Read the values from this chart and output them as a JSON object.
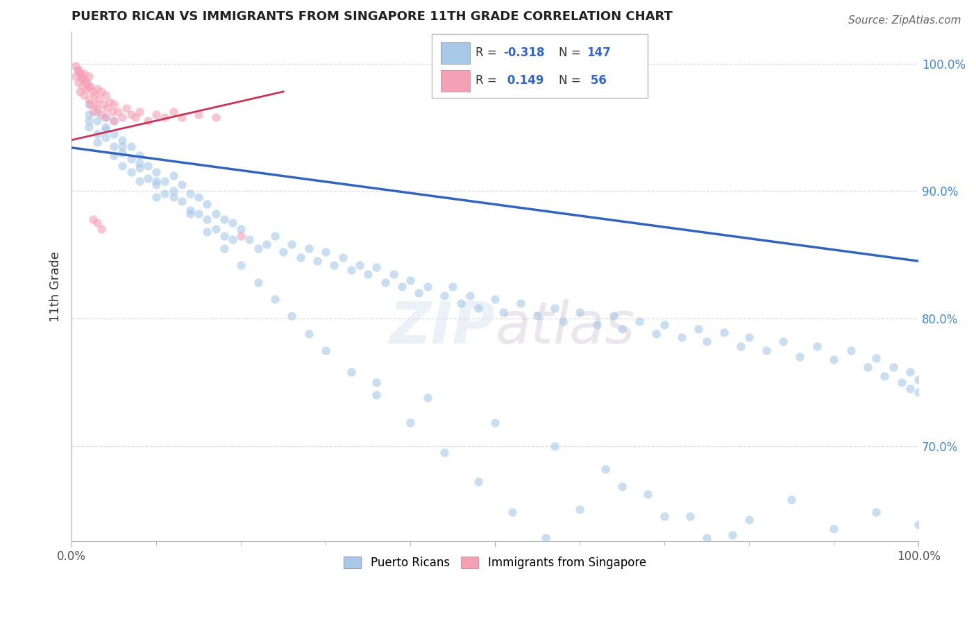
{
  "title": "PUERTO RICAN VS IMMIGRANTS FROM SINGAPORE 11TH GRADE CORRELATION CHART",
  "source": "Source: ZipAtlas.com",
  "ylabel": "11th Grade",
  "right_yticks": [
    1.0,
    0.9,
    0.8,
    0.7
  ],
  "right_yticklabels": [
    "100.0%",
    "90.0%",
    "80.0%",
    "70.0%"
  ],
  "legend_blue_r": "-0.318",
  "legend_blue_n": "147",
  "legend_pink_r": "0.149",
  "legend_pink_n": "56",
  "blue_color": "#a8c8e8",
  "pink_color": "#f4a0b5",
  "trend_blue_color": "#3366bb",
  "trend_pink_color": "#cc3355",
  "watermark": "ZIPatlas",
  "title_fontsize": 13,
  "source_fontsize": 11,
  "scatter_alpha": 0.6,
  "scatter_size": 80,
  "ylim_low": 0.625,
  "ylim_high": 1.025,
  "blue_scatter_x": [
    0.02,
    0.02,
    0.02,
    0.02,
    0.03,
    0.03,
    0.03,
    0.03,
    0.04,
    0.04,
    0.04,
    0.05,
    0.05,
    0.05,
    0.05,
    0.06,
    0.06,
    0.06,
    0.07,
    0.07,
    0.07,
    0.08,
    0.08,
    0.08,
    0.09,
    0.09,
    0.1,
    0.1,
    0.1,
    0.11,
    0.11,
    0.12,
    0.12,
    0.13,
    0.13,
    0.14,
    0.14,
    0.15,
    0.15,
    0.16,
    0.16,
    0.17,
    0.17,
    0.18,
    0.18,
    0.19,
    0.19,
    0.2,
    0.21,
    0.22,
    0.23,
    0.24,
    0.25,
    0.26,
    0.27,
    0.28,
    0.29,
    0.3,
    0.31,
    0.32,
    0.33,
    0.34,
    0.35,
    0.36,
    0.37,
    0.38,
    0.39,
    0.4,
    0.41,
    0.42,
    0.44,
    0.45,
    0.46,
    0.47,
    0.48,
    0.5,
    0.51,
    0.53,
    0.55,
    0.57,
    0.58,
    0.6,
    0.62,
    0.64,
    0.65,
    0.67,
    0.69,
    0.7,
    0.72,
    0.74,
    0.75,
    0.77,
    0.79,
    0.8,
    0.82,
    0.84,
    0.86,
    0.88,
    0.9,
    0.92,
    0.94,
    0.95,
    0.96,
    0.97,
    0.98,
    0.99,
    0.99,
    1.0,
    1.0,
    0.04,
    0.06,
    0.08,
    0.1,
    0.12,
    0.14,
    0.16,
    0.18,
    0.2,
    0.22,
    0.24,
    0.26,
    0.28,
    0.3,
    0.33,
    0.36,
    0.4,
    0.44,
    0.48,
    0.52,
    0.56,
    0.6,
    0.65,
    0.7,
    0.75,
    0.8,
    0.85,
    0.9,
    0.95,
    1.0,
    0.36,
    0.42,
    0.5,
    0.57,
    0.63,
    0.68,
    0.73,
    0.78
  ],
  "blue_scatter_y": [
    0.96,
    0.968,
    0.955,
    0.95,
    0.962,
    0.955,
    0.945,
    0.938,
    0.958,
    0.95,
    0.942,
    0.955,
    0.945,
    0.935,
    0.928,
    0.94,
    0.93,
    0.92,
    0.935,
    0.925,
    0.915,
    0.928,
    0.918,
    0.908,
    0.92,
    0.91,
    0.915,
    0.905,
    0.895,
    0.908,
    0.898,
    0.912,
    0.9,
    0.905,
    0.892,
    0.898,
    0.885,
    0.895,
    0.882,
    0.89,
    0.878,
    0.882,
    0.87,
    0.878,
    0.865,
    0.875,
    0.862,
    0.87,
    0.862,
    0.855,
    0.858,
    0.865,
    0.852,
    0.858,
    0.848,
    0.855,
    0.845,
    0.852,
    0.842,
    0.848,
    0.838,
    0.842,
    0.835,
    0.84,
    0.828,
    0.835,
    0.825,
    0.83,
    0.82,
    0.825,
    0.818,
    0.825,
    0.812,
    0.818,
    0.808,
    0.815,
    0.805,
    0.812,
    0.802,
    0.808,
    0.798,
    0.805,
    0.795,
    0.802,
    0.792,
    0.798,
    0.788,
    0.795,
    0.785,
    0.792,
    0.782,
    0.789,
    0.778,
    0.785,
    0.775,
    0.782,
    0.77,
    0.778,
    0.768,
    0.775,
    0.762,
    0.769,
    0.755,
    0.762,
    0.75,
    0.758,
    0.745,
    0.752,
    0.742,
    0.948,
    0.935,
    0.922,
    0.908,
    0.895,
    0.882,
    0.868,
    0.855,
    0.842,
    0.828,
    0.815,
    0.802,
    0.788,
    0.775,
    0.758,
    0.74,
    0.718,
    0.695,
    0.672,
    0.648,
    0.628,
    0.65,
    0.668,
    0.645,
    0.628,
    0.642,
    0.658,
    0.635,
    0.648,
    0.638,
    0.75,
    0.738,
    0.718,
    0.7,
    0.682,
    0.662,
    0.645,
    0.63
  ],
  "pink_scatter_x": [
    0.005,
    0.007,
    0.008,
    0.01,
    0.01,
    0.012,
    0.013,
    0.015,
    0.015,
    0.017,
    0.018,
    0.02,
    0.02,
    0.022,
    0.022,
    0.025,
    0.025,
    0.027,
    0.028,
    0.03,
    0.03,
    0.032,
    0.035,
    0.035,
    0.038,
    0.04,
    0.04,
    0.042,
    0.045,
    0.048,
    0.05,
    0.05,
    0.055,
    0.06,
    0.065,
    0.07,
    0.075,
    0.08,
    0.09,
    0.1,
    0.11,
    0.12,
    0.13,
    0.15,
    0.17,
    0.2,
    0.005,
    0.008,
    0.01,
    0.012,
    0.015,
    0.018,
    0.02,
    0.025,
    0.03,
    0.035
  ],
  "pink_scatter_y": [
    0.99,
    0.995,
    0.985,
    0.992,
    0.978,
    0.988,
    0.982,
    0.992,
    0.975,
    0.985,
    0.98,
    0.99,
    0.972,
    0.982,
    0.968,
    0.978,
    0.962,
    0.975,
    0.968,
    0.98,
    0.965,
    0.972,
    0.978,
    0.96,
    0.968,
    0.975,
    0.958,
    0.965,
    0.97,
    0.962,
    0.968,
    0.955,
    0.962,
    0.958,
    0.965,
    0.96,
    0.958,
    0.962,
    0.955,
    0.96,
    0.958,
    0.962,
    0.958,
    0.96,
    0.958,
    0.865,
    0.998,
    0.995,
    0.992,
    0.99,
    0.988,
    0.985,
    0.982,
    0.878,
    0.875,
    0.87
  ]
}
